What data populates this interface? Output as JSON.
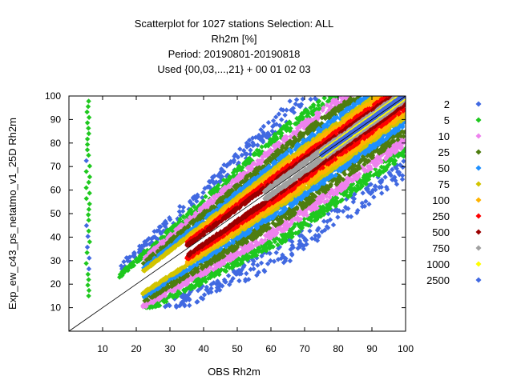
{
  "chart_data": {
    "type": "scatter",
    "title_lines": [
      "Scatterplot for 1027 stations Selection: ALL",
      "Rh2m [%]",
      "Period: 20190801-20190818",
      "Used {00,03,...,21} + 00 01 02 03"
    ],
    "xlabel": "OBS Rh2m",
    "ylabel": "Exp_ew_c43_ps_netatmo_v1_25D Rh2m",
    "xlim": [
      0,
      100
    ],
    "ylim": [
      0,
      100
    ],
    "xticks": [
      10,
      20,
      30,
      40,
      50,
      60,
      70,
      80,
      90,
      100
    ],
    "yticks": [
      10,
      20,
      30,
      40,
      50,
      60,
      70,
      80,
      90,
      100
    ],
    "grid": false,
    "diagonal": true,
    "legend_position": "right",
    "density_levels": [
      {
        "label": "2",
        "color": "#4169e1",
        "width": 34
      },
      {
        "label": "5",
        "color": "#1ec81e",
        "width": 25
      },
      {
        "label": "10",
        "color": "#ee82ee",
        "width": 20.5
      },
      {
        "label": "25",
        "color": "#4e7d10",
        "width": 16.5
      },
      {
        "label": "50",
        "color": "#1e90ff",
        "width": 12.5
      },
      {
        "label": "75",
        "color": "#d2c400",
        "width": 9.5
      },
      {
        "label": "100",
        "color": "#ffb300",
        "width": 8
      },
      {
        "label": "250",
        "color": "#ff0000",
        "width": 6
      },
      {
        "label": "500",
        "color": "#9b0000",
        "width": 4
      },
      {
        "label": "750",
        "color": "#a0a0a0",
        "width": 2.5
      },
      {
        "label": "1000",
        "color": "#ffff00",
        "width": 1.2
      },
      {
        "label": "2500",
        "color": "#4169e1",
        "width": 0.5
      }
    ]
  }
}
